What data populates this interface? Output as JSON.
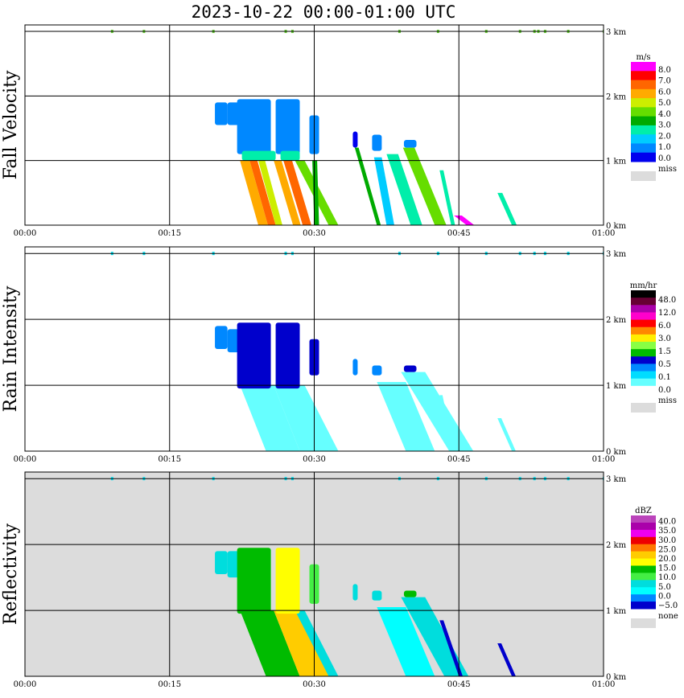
{
  "title": "2023-10-22   00:00-01:00 UTC",
  "x_ticks": [
    "00:00",
    "00:15",
    "00:30",
    "00:45",
    "01:00"
  ],
  "y_ticks": [
    "0 km",
    "1 km",
    "2 km",
    "3 km"
  ],
  "colors": {
    "grid": "#000000",
    "panel_bg_reflectivity": "#dcdcdc",
    "missing": "#dcdcdc"
  },
  "chart_data": [
    {
      "type": "heatmap",
      "ylabel": "Fall Velocity",
      "x_range_min": [
        0,
        60
      ],
      "y_range_km": [
        0,
        3.1
      ],
      "x_ticks": [
        "00:00",
        "00:15",
        "00:30",
        "00:45",
        "01:00"
      ],
      "y_ticks": [
        "0 km",
        "1 km",
        "2 km",
        "3 km"
      ],
      "colorbar": {
        "unit": "m/s",
        "labels": [
          "8.0",
          "7.0",
          "6.0",
          "5.0",
          "4.0",
          "3.0",
          "2.0",
          "1.0",
          "0.0"
        ],
        "missing_label": "miss",
        "colors": [
          "#ff00ff",
          "#ff0000",
          "#ff6600",
          "#ffaa00",
          "#ccee00",
          "#66dd00",
          "#00aa00",
          "#00eeaa",
          "#00ccff",
          "#0088ff",
          "#0000ee"
        ]
      },
      "echoes": [
        {
          "t0": 19.7,
          "t1": 21.0,
          "z0": 1.55,
          "z1": 1.9,
          "v": 0.6
        },
        {
          "t0": 21.0,
          "t1": 22.2,
          "z0": 1.55,
          "z1": 1.9,
          "v": 0.6
        },
        {
          "t0": 22.0,
          "t1": 25.5,
          "z0": 1.1,
          "z1": 1.95,
          "v": 0.7
        },
        {
          "t0": 26.0,
          "t1": 28.5,
          "z0": 1.1,
          "z1": 1.95,
          "v": 0.7
        },
        {
          "t0": 29.5,
          "t1": 30.5,
          "z0": 1.1,
          "z1": 1.7,
          "v": 0.5
        },
        {
          "t0": 34.0,
          "t1": 34.5,
          "z0": 1.2,
          "z1": 1.45,
          "v": 0.4
        },
        {
          "t0": 36.0,
          "t1": 37.0,
          "z0": 1.15,
          "z1": 1.4,
          "v": 0.6
        },
        {
          "t0": 39.3,
          "t1": 40.6,
          "z0": 1.2,
          "z1": 1.32,
          "v": 0.8
        },
        {
          "t0": 22.5,
          "t1": 26.0,
          "z0": 1.0,
          "z1": 1.15,
          "v": 2.5
        },
        {
          "t0": 26.5,
          "t1": 28.5,
          "z0": 1.0,
          "z1": 1.15,
          "v": 2.5
        }
      ],
      "streaks": [
        {
          "t_top": 22.3,
          "t_bot": 24.2,
          "z_top": 1.0,
          "w": 1.0,
          "v": 5.3
        },
        {
          "t_top": 23.3,
          "t_bot": 25.2,
          "z_top": 1.0,
          "w": 0.8,
          "v": 6.4
        },
        {
          "t_top": 24.2,
          "t_bot": 26.0,
          "z_top": 1.0,
          "w": 0.7,
          "v": 4.8
        },
        {
          "t_top": 25.8,
          "t_bot": 27.8,
          "z_top": 1.0,
          "w": 0.8,
          "v": 5.4
        },
        {
          "t_top": 26.8,
          "t_bot": 28.8,
          "z_top": 1.0,
          "w": 0.9,
          "v": 6.3
        },
        {
          "t_top": 28.0,
          "t_bot": 31.5,
          "z_top": 1.0,
          "w": 1.0,
          "v": 4.2
        },
        {
          "t_top": 29.8,
          "t_bot": 30.0,
          "z_top": 1.0,
          "w": 0.5,
          "v": 3.2
        },
        {
          "t_top": 34.2,
          "t_bot": 36.5,
          "z_top": 1.2,
          "w": 0.4,
          "v": 3.5
        },
        {
          "t_top": 36.2,
          "t_bot": 37.5,
          "z_top": 1.05,
          "w": 0.8,
          "v": 1.8
        },
        {
          "t_top": 39.2,
          "t_bot": 42.5,
          "z_top": 1.2,
          "w": 1.2,
          "v": 3.8
        },
        {
          "t_top": 37.5,
          "t_bot": 40.0,
          "z_top": 1.1,
          "w": 1.2,
          "v": 2.6
        },
        {
          "t_top": 43.0,
          "t_bot": 44.2,
          "z_top": 0.85,
          "w": 0.4,
          "v": 2.5
        },
        {
          "t_top": 49.0,
          "t_bot": 50.5,
          "z_top": 0.5,
          "w": 0.5,
          "v": 2.2
        },
        {
          "t_top": 44.5,
          "t_bot": 45.8,
          "z_top": 0.15,
          "w": 0.8,
          "v": 8.0
        }
      ],
      "top_specks": [
        9.0,
        12.3,
        19.5,
        27.0,
        27.7,
        38.8,
        42.8,
        47.8,
        51.3,
        52.8,
        53.2,
        53.9,
        56.3,
        60.0
      ]
    },
    {
      "type": "heatmap",
      "ylabel": "Rain Intensity",
      "x_range_min": [
        0,
        60
      ],
      "y_range_km": [
        0,
        3.1
      ],
      "x_ticks": [
        "00:00",
        "00:15",
        "00:30",
        "00:45",
        "01:00"
      ],
      "y_ticks": [
        "0 km",
        "1 km",
        "2 km",
        "3 km"
      ],
      "colorbar": {
        "unit": "mm/hr",
        "labels": [
          "48.0",
          "12.0",
          "6.0",
          "3.0",
          "1.5",
          "0.5",
          "0.1",
          "0.0"
        ],
        "missing_label": "miss",
        "colors": [
          "#000000",
          "#660033",
          "#aa00aa",
          "#ff00cc",
          "#ff0000",
          "#ff8800",
          "#ffee00",
          "#88ff44",
          "#00bb00",
          "#0000cc",
          "#0088ff",
          "#00ddff",
          "#66ffff",
          "#ffffff"
        ]
      },
      "echoes": [
        {
          "t0": 19.7,
          "t1": 21.0,
          "z0": 1.55,
          "z1": 1.9,
          "v": 0.3
        },
        {
          "t0": 21.0,
          "t1": 22.2,
          "z0": 1.5,
          "z1": 1.85,
          "v": 0.3
        },
        {
          "t0": 22.0,
          "t1": 25.5,
          "z0": 0.95,
          "z1": 1.95,
          "v": 0.6
        },
        {
          "t0": 26.0,
          "t1": 28.5,
          "z0": 0.95,
          "z1": 1.95,
          "v": 0.8
        },
        {
          "t0": 29.5,
          "t1": 30.5,
          "z0": 1.15,
          "z1": 1.7,
          "v": 0.5
        },
        {
          "t0": 34.0,
          "t1": 34.5,
          "z0": 1.15,
          "z1": 1.4,
          "v": 0.3
        },
        {
          "t0": 36.0,
          "t1": 37.0,
          "z0": 1.15,
          "z1": 1.3,
          "v": 0.3
        },
        {
          "t0": 39.3,
          "t1": 40.6,
          "z0": 1.2,
          "z1": 1.3,
          "v": 0.5
        }
      ],
      "streaks": [
        {
          "t_top": 22.3,
          "t_bot": 25.0,
          "z_top": 1.0,
          "w": 3.5,
          "v": 0.08
        },
        {
          "t_top": 25.8,
          "t_bot": 28.5,
          "z_top": 1.0,
          "w": 3.0,
          "v": 0.08
        },
        {
          "t_top": 28.0,
          "t_bot": 31.5,
          "z_top": 1.0,
          "w": 1.0,
          "v": 0.08
        },
        {
          "t_top": 36.5,
          "t_bot": 39.5,
          "z_top": 1.05,
          "w": 3.0,
          "v": 0.08
        },
        {
          "t_top": 39.0,
          "t_bot": 44.0,
          "z_top": 1.2,
          "w": 2.5,
          "v": 0.08
        },
        {
          "t_top": 43.0,
          "t_bot": 44.2,
          "z_top": 0.85,
          "w": 0.3,
          "v": 0.05
        },
        {
          "t_top": 49.0,
          "t_bot": 50.5,
          "z_top": 0.5,
          "w": 0.4,
          "v": 0.05
        }
      ],
      "top_specks": [
        9.0,
        12.3,
        19.5,
        27.0,
        27.7,
        38.8,
        42.8,
        47.8,
        51.3,
        52.8,
        53.9,
        56.3,
        60.0
      ]
    },
    {
      "type": "heatmap",
      "ylabel": "Reflectivity",
      "x_range_min": [
        0,
        60
      ],
      "y_range_km": [
        0,
        3.1
      ],
      "x_ticks": [
        "00:00",
        "00:15",
        "00:30",
        "00:45",
        "01:00"
      ],
      "y_ticks": [
        "0 km",
        "1 km",
        "2 km",
        "3 km"
      ],
      "colorbar": {
        "unit": "dBZ",
        "labels": [
          "40.0",
          "35.0",
          "30.0",
          "25.0",
          "20.0",
          "15.0",
          "10.0",
          "5.0",
          "0.0",
          "−5.0"
        ],
        "missing_label": "none",
        "colors": [
          "#bb44bb",
          "#aa00aa",
          "#ee00ee",
          "#ee0000",
          "#ff7700",
          "#ffcc00",
          "#ffff00",
          "#00bb00",
          "#44ee44",
          "#00dddd",
          "#00ffff",
          "#0088ff",
          "#0000cc"
        ]
      },
      "echoes": [
        {
          "t0": 19.7,
          "t1": 21.0,
          "z0": 1.55,
          "z1": 1.9,
          "v": 8
        },
        {
          "t0": 21.0,
          "t1": 22.2,
          "z0": 1.5,
          "z1": 1.9,
          "v": 8
        },
        {
          "t0": 22.0,
          "t1": 25.5,
          "z0": 0.95,
          "z1": 1.95,
          "v": 14
        },
        {
          "t0": 26.0,
          "t1": 28.5,
          "z0": 0.95,
          "z1": 1.95,
          "v": 16
        },
        {
          "t0": 29.5,
          "t1": 30.5,
          "z0": 1.1,
          "z1": 1.7,
          "v": 10
        },
        {
          "t0": 34.0,
          "t1": 34.5,
          "z0": 1.15,
          "z1": 1.4,
          "v": 6
        },
        {
          "t0": 36.0,
          "t1": 37.0,
          "z0": 1.15,
          "z1": 1.3,
          "v": 6
        },
        {
          "t0": 39.3,
          "t1": 40.6,
          "z0": 1.2,
          "z1": 1.3,
          "v": 12
        }
      ],
      "streaks": [
        {
          "t_top": 22.3,
          "t_bot": 25.0,
          "z_top": 1.0,
          "w": 3.5,
          "v": 14
        },
        {
          "t_top": 25.8,
          "t_bot": 28.5,
          "z_top": 1.0,
          "w": 3.0,
          "v": 18
        },
        {
          "t_top": 28.0,
          "t_bot": 31.5,
          "z_top": 1.0,
          "w": 1.0,
          "v": 9
        },
        {
          "t_top": 36.5,
          "t_bot": 39.5,
          "z_top": 1.05,
          "w": 3.0,
          "v": 3
        },
        {
          "t_top": 39.0,
          "t_bot": 43.5,
          "z_top": 1.2,
          "w": 2.5,
          "v": 9
        },
        {
          "t_top": 43.0,
          "t_bot": 45.0,
          "z_top": 0.85,
          "w": 0.4,
          "v": -3
        },
        {
          "t_top": 49.0,
          "t_bot": 50.5,
          "z_top": 0.5,
          "w": 0.4,
          "v": -3
        }
      ],
      "top_specks": [
        9.0,
        12.3,
        19.5,
        27.0,
        27.7,
        38.8,
        42.8,
        47.8,
        51.3,
        52.8,
        53.9,
        56.3,
        60.0
      ]
    }
  ]
}
